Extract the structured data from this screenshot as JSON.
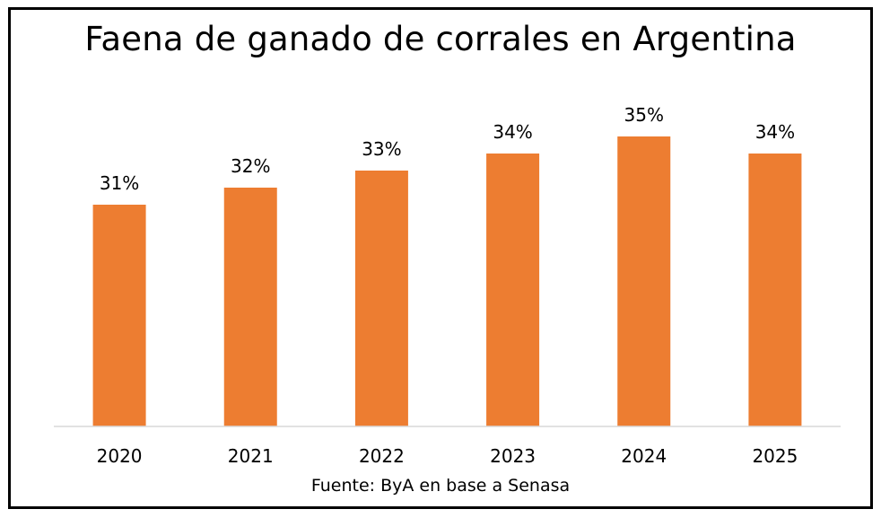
{
  "chart_data": {
    "type": "bar",
    "title": "Faena de ganado de corrales en Argentina",
    "categories": [
      "2020",
      "2021",
      "2022",
      "2023",
      "2024",
      "2025"
    ],
    "values": [
      31,
      32,
      33,
      34,
      35,
      34
    ],
    "data_labels": [
      "31%",
      "32%",
      "33%",
      "34%",
      "35%",
      "34%"
    ],
    "xlabel": "",
    "ylabel": "",
    "ylim": [
      18,
      36
    ],
    "grid": false,
    "legend": "none",
    "bar_color": "#ED7D31"
  },
  "source": "Fuente: ByA en base a Senasa"
}
